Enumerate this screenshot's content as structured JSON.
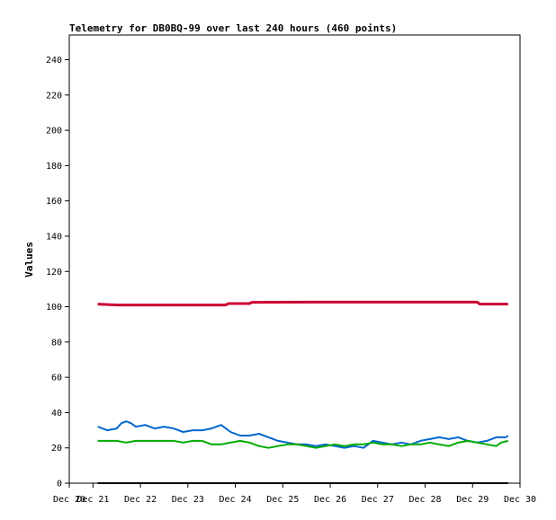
{
  "chart_data": {
    "type": "line",
    "title": "Telemetry for DB0BQ-99 over last 240 hours (460 points)",
    "xlabel": "",
    "ylabel": "Values",
    "ylim": [
      0,
      254
    ],
    "xlim": [
      0,
      9.5
    ],
    "yticks": [
      0,
      20,
      40,
      60,
      80,
      100,
      120,
      140,
      160,
      180,
      200,
      220,
      240
    ],
    "xtick_labels": [
      "Dec 20",
      "Dec 21",
      "Dec 22",
      "Dec 23",
      "Dec 24",
      "Dec 25",
      "Dec 26",
      "Dec 27",
      "Dec 28",
      "Dec 29",
      "Dec 30"
    ],
    "grid": false,
    "legend": "none",
    "series": [
      {
        "color": "#cc0033",
        "points": [
          [
            0.6,
            101.5
          ],
          [
            1.0,
            101.0
          ],
          [
            2.0,
            101.0
          ],
          [
            3.0,
            101.0
          ],
          [
            3.3,
            101.0
          ],
          [
            3.35,
            101.8
          ],
          [
            3.8,
            101.8
          ],
          [
            3.85,
            102.5
          ],
          [
            5.0,
            102.6
          ],
          [
            6.0,
            102.6
          ],
          [
            7.0,
            102.6
          ],
          [
            8.0,
            102.6
          ],
          [
            8.6,
            102.6
          ],
          [
            8.65,
            101.5
          ],
          [
            9.25,
            101.5
          ]
        ]
      },
      {
        "color": "#0066cc",
        "points": [
          [
            0.6,
            32
          ],
          [
            0.8,
            30
          ],
          [
            1.0,
            31
          ],
          [
            1.1,
            34
          ],
          [
            1.2,
            35
          ],
          [
            1.3,
            34
          ],
          [
            1.4,
            32
          ],
          [
            1.6,
            33
          ],
          [
            1.8,
            31
          ],
          [
            2.0,
            32
          ],
          [
            2.2,
            31
          ],
          [
            2.4,
            29
          ],
          [
            2.6,
            30
          ],
          [
            2.8,
            30
          ],
          [
            3.0,
            31
          ],
          [
            3.1,
            32
          ],
          [
            3.2,
            33
          ],
          [
            3.3,
            31
          ],
          [
            3.4,
            29
          ],
          [
            3.6,
            27
          ],
          [
            3.8,
            27
          ],
          [
            4.0,
            28
          ],
          [
            4.2,
            26
          ],
          [
            4.4,
            24
          ],
          [
            4.6,
            23
          ],
          [
            4.8,
            22
          ],
          [
            5.0,
            22
          ],
          [
            5.2,
            21
          ],
          [
            5.4,
            22
          ],
          [
            5.6,
            21
          ],
          [
            5.8,
            20
          ],
          [
            6.0,
            21
          ],
          [
            6.2,
            20
          ],
          [
            6.4,
            24
          ],
          [
            6.6,
            23
          ],
          [
            6.8,
            22
          ],
          [
            7.0,
            23
          ],
          [
            7.2,
            22
          ],
          [
            7.4,
            24
          ],
          [
            7.6,
            25
          ],
          [
            7.8,
            26
          ],
          [
            8.0,
            25
          ],
          [
            8.2,
            26
          ],
          [
            8.4,
            24
          ],
          [
            8.6,
            23
          ],
          [
            8.8,
            24
          ],
          [
            9.0,
            26
          ],
          [
            9.2,
            26
          ],
          [
            9.25,
            27
          ]
        ]
      },
      {
        "color": "#00aa00",
        "points": [
          [
            0.6,
            24
          ],
          [
            1.0,
            24
          ],
          [
            1.2,
            23
          ],
          [
            1.4,
            24
          ],
          [
            1.8,
            24
          ],
          [
            2.2,
            24
          ],
          [
            2.4,
            23
          ],
          [
            2.6,
            24
          ],
          [
            2.8,
            24
          ],
          [
            3.0,
            22
          ],
          [
            3.2,
            22
          ],
          [
            3.4,
            23
          ],
          [
            3.6,
            24
          ],
          [
            3.8,
            23
          ],
          [
            4.0,
            21
          ],
          [
            4.2,
            20
          ],
          [
            4.4,
            21
          ],
          [
            4.6,
            22
          ],
          [
            4.8,
            22
          ],
          [
            5.0,
            21
          ],
          [
            5.2,
            20
          ],
          [
            5.4,
            21
          ],
          [
            5.6,
            22
          ],
          [
            5.8,
            21
          ],
          [
            6.0,
            22
          ],
          [
            6.2,
            22
          ],
          [
            6.4,
            23
          ],
          [
            6.6,
            22
          ],
          [
            6.8,
            22
          ],
          [
            7.0,
            21
          ],
          [
            7.2,
            22
          ],
          [
            7.4,
            22
          ],
          [
            7.6,
            23
          ],
          [
            7.8,
            22
          ],
          [
            8.0,
            21
          ],
          [
            8.2,
            23
          ],
          [
            8.4,
            24
          ],
          [
            8.6,
            23
          ],
          [
            8.8,
            22
          ],
          [
            9.0,
            21
          ],
          [
            9.1,
            23
          ],
          [
            9.25,
            24
          ]
        ]
      },
      {
        "color": "#000000",
        "points": [
          [
            0.6,
            0
          ],
          [
            9.25,
            0
          ]
        ]
      }
    ]
  }
}
